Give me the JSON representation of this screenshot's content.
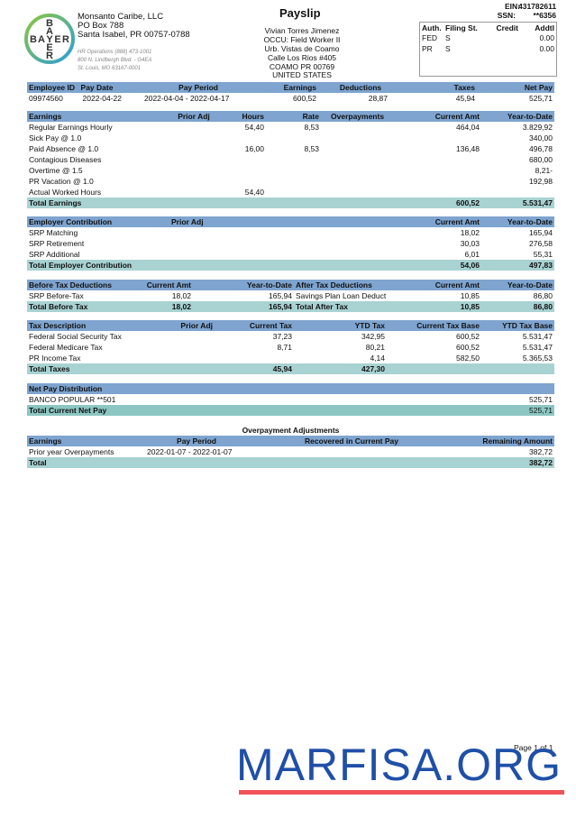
{
  "company": {
    "name": "Monsanto Caribe, LLC",
    "line1": "PO Box 788",
    "line2": "Santa Isabel, PR 00757-0788",
    "hr1": "HR Operations (888) 473-1001",
    "hr2": "800 N. Lindbergh Blvd. - G4EA",
    "hr3": "St. Louis, MO 63167-0001",
    "logo_text": "BAYER"
  },
  "title": "Payslip",
  "employee": {
    "name": "Vivian Torres Jimenez",
    "occu": "OCCU: Field Worker II",
    "addr1": "Urb. Vistas de Coamo",
    "addr2": "Calle Los Rios #405",
    "addr3": "COAMO PR  00769",
    "country": "UNITED STATES"
  },
  "ids": {
    "ein_label": "EIN:",
    "ein": "431782611",
    "ssn_label": "SSN:",
    "ssn": "**6356"
  },
  "withholding": {
    "headers": [
      "Auth.",
      "Filing St.",
      "Credit",
      "Addtl"
    ],
    "rows": [
      [
        "FED",
        "S",
        "",
        "0.00"
      ],
      [
        "PR",
        "S",
        "",
        "0.00"
      ]
    ]
  },
  "sections": {
    "summary": {
      "headers": [
        "Employee ID",
        "Pay Date",
        "Pay Period",
        "Earnings",
        "Deductions",
        "Taxes",
        "Net Pay"
      ],
      "rows": [
        [
          "09974560",
          "2022-04-22",
          "2022-04-04 - 2022-04-17",
          "600,52",
          "28,87",
          "45,94",
          "525,71"
        ]
      ]
    },
    "earnings": {
      "headers": [
        "Earnings",
        "Prior Adj",
        "Hours",
        "Rate",
        "Overpayments",
        "Current Amt",
        "Year-to-Date"
      ],
      "rows": [
        [
          "Regular Earnings Hourly",
          "",
          "54,40",
          "8,53",
          "",
          "464,04",
          "3.829,92"
        ],
        [
          "Sick Pay @ 1.0",
          "",
          "",
          "",
          "",
          "",
          "340,00"
        ],
        [
          "Paid Absence @ 1.0",
          "",
          "16,00",
          "8,53",
          "",
          "136,48",
          "496,78"
        ],
        [
          "Contagious Diseases",
          "",
          "",
          "",
          "",
          "",
          "680,00"
        ],
        [
          "Overtime @ 1.5",
          "",
          "",
          "",
          "",
          "",
          "8,21-"
        ],
        [
          "PR Vacation @ 1.0",
          "",
          "",
          "",
          "",
          "",
          "192,98"
        ],
        [
          "Actual Worked Hours",
          "",
          "54,40",
          "",
          "",
          "",
          ""
        ]
      ],
      "total": [
        "Total Earnings",
        "",
        "",
        "",
        "",
        "600,52",
        "5.531,47"
      ]
    },
    "employer": {
      "headers": [
        "Employer Contribution",
        "Prior Adj",
        "Current Amt",
        "Year-to-Date"
      ],
      "rows": [
        [
          "SRP Matching",
          "",
          "18,02",
          "165,94"
        ],
        [
          "SRP Retirement",
          "",
          "30,03",
          "276,58"
        ],
        [
          "SRP Additional",
          "",
          "6,01",
          "55,31"
        ]
      ],
      "total": [
        "Total Employer Contribution",
        "",
        "54,06",
        "497,83"
      ]
    },
    "deductions": {
      "headers": [
        "Before Tax Deductions",
        "Current Amt",
        "Year-to-Date",
        "After Tax Deductions",
        "Current Amt",
        "Year-to-Date"
      ],
      "rows": [
        [
          "SRP Before-Tax",
          "18,02",
          "165,94",
          "Savings Plan Loan Deduct",
          "10,85",
          "86,80"
        ]
      ],
      "total": [
        "Total Before Tax",
        "18,02",
        "165,94",
        "Total After Tax",
        "10,85",
        "86,80"
      ]
    },
    "taxes": {
      "headers": [
        "Tax Description",
        "Prior Adj",
        "Current Tax",
        "YTD Tax",
        "Current Tax Base",
        "YTD Tax Base"
      ],
      "rows": [
        [
          "Federal Social Security Tax",
          "",
          "37,23",
          "342,95",
          "600,52",
          "5.531,47"
        ],
        [
          "Federal Medicare Tax",
          "",
          "8,71",
          "80,21",
          "600,52",
          "5.531,47"
        ],
        [
          "PR Income Tax",
          "",
          "",
          "4,14",
          "582,50",
          "5.365,53"
        ]
      ],
      "total": [
        "Total Taxes",
        "",
        "45,94",
        "427,30",
        "",
        ""
      ]
    },
    "netpay": {
      "headers": [
        "Net Pay Distribution",
        ""
      ],
      "rows": [
        [
          "BANCO POPULAR **501",
          "525,71"
        ]
      ],
      "total": [
        "Total Current Net Pay",
        "525,71"
      ]
    },
    "overpay": {
      "title": "Overpayment Adjustments",
      "headers": [
        "Earnings",
        "Pay Period",
        "Recovered in Current Pay",
        "Remaining Amount"
      ],
      "rows": [
        [
          "Prior year Overpayments",
          "2022-01-07 - 2022-01-07",
          "",
          "382,72"
        ]
      ],
      "total": [
        "Total",
        "",
        "",
        "382,72"
      ]
    }
  },
  "footer": {
    "page": "Page 1 of 1",
    "watermark": "MARFISA.ORG"
  },
  "colors": {
    "header": "#7ea4cf",
    "total": "#a9d2d2",
    "watermark": "#1f4fa8",
    "watermark_line": "#f0525a"
  }
}
